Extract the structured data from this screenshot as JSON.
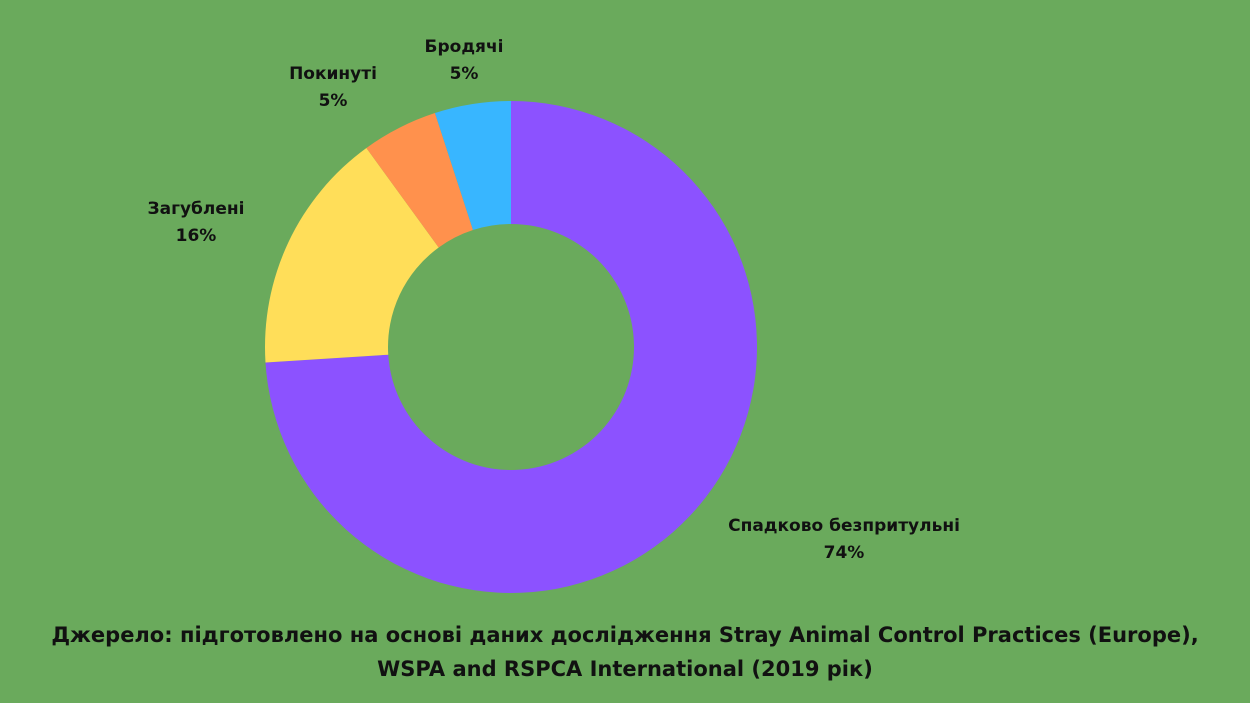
{
  "chart_data": {
    "type": "pie",
    "donut": true,
    "categories": [
      "Спадково безпритульні",
      "Загублені",
      "Покинуті",
      "Бродячі"
    ],
    "values": [
      74,
      16,
      5,
      5
    ],
    "value_labels": [
      "74%",
      "16%",
      "5%",
      "5%"
    ],
    "colors": [
      "#8c52ff",
      "#ffde59",
      "#ff914d",
      "#38b6ff"
    ],
    "legend": "none",
    "grid": false
  },
  "colors": {
    "background": "#6aaa5c"
  },
  "source": {
    "line1": "Джерело: підготовлено на основі даних дослідження Stray Animal Control Practices (Europe),",
    "line2": "WSPA and RSPCA International (2019 рік)"
  }
}
